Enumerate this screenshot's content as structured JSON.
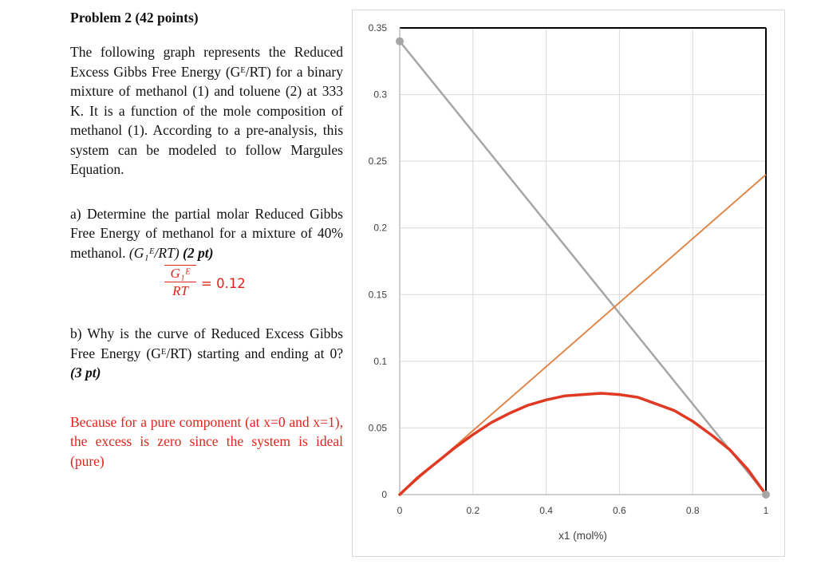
{
  "problem": {
    "title": "Problem 2 (42 points)",
    "intro": "The following graph represents the Reduced Excess Gibbs Free Energy (Gᴱ/RT) for a binary mixture of methanol (1) and toluene (2) at 333 K. It is a function of the mole composition of methanol (1). According to a pre-analysis, this system can be modeled to follow Margules Equation.",
    "part_a_text": "a) Determine the partial molar Reduced Gibbs Free Energy of methanol for a mixture of 40% methanol.",
    "part_a_expr": "(G₁ᴱ/RT)",
    "part_a_points": "(2 pt)",
    "answer_a_num": "G₁ᴱ",
    "answer_a_den": "RT",
    "answer_a_value": "= 0.12",
    "part_b_text": "b) Why is the curve of Reduced Excess Gibbs Free Energy (Gᴱ/RT) starting and ending at 0?",
    "part_b_points": "(3 pt)",
    "answer_b": "Because for a pure component (at x=0 and x=1), the excess is zero since the system is ideal (pure)"
  },
  "colors": {
    "answer": "#e2231a",
    "curve": "#e03a24",
    "tangent": "#e0874a",
    "chord": "#a6a6a6"
  },
  "chart_data": {
    "type": "line",
    "title": "",
    "xlabel": "x1 (mol%)",
    "ylabel": "",
    "xlim": [
      0,
      1
    ],
    "ylim": [
      0,
      0.35
    ],
    "x_ticks": [
      "0",
      "0.2",
      "0.4",
      "0.6",
      "0.8",
      "1"
    ],
    "y_ticks": [
      "0",
      "0.05",
      "0.1",
      "0.15",
      "0.2",
      "0.25",
      "0.3",
      "0.35"
    ],
    "grid": true,
    "legend": "none",
    "series": [
      {
        "x": [
          0,
          0.05,
          0.1,
          0.15,
          0.2,
          0.25,
          0.3,
          0.35,
          0.4,
          0.45,
          0.5,
          0.55,
          0.6,
          0.65,
          0.7,
          0.75,
          0.8,
          0.85,
          0.9,
          0.95,
          1.0
        ],
        "y": [
          0,
          0.013,
          0.024,
          0.035,
          0.045,
          0.054,
          0.061,
          0.067,
          0.071,
          0.074,
          0.075,
          0.076,
          0.075,
          0.073,
          0.068,
          0.063,
          0.055,
          0.045,
          0.034,
          0.019,
          0
        ]
      },
      {
        "x": [
          0,
          1
        ],
        "y": [
          0,
          0.24
        ]
      },
      {
        "x": [
          0,
          1
        ],
        "y": [
          0.34,
          0
        ]
      }
    ]
  }
}
